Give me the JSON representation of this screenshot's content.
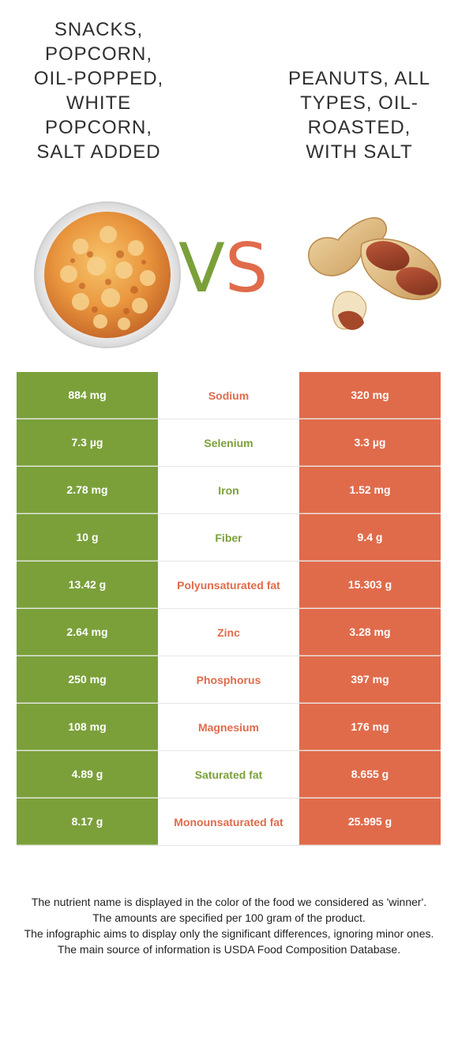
{
  "left_food": {
    "title": "Snacks, popcorn, oil-popped, white popcorn, salt added",
    "title_lines": [
      "SNACKS,",
      "POPCORN,",
      "OIL-POPPED,",
      "WHITE",
      "POPCORN,",
      "SALT ADDED"
    ],
    "image_icon": "popcorn-bowl",
    "color": "#7ba03a"
  },
  "right_food": {
    "title": "Peanuts, all types, oil-roasted, with salt",
    "title_lines": [
      "PEANUTS, ALL",
      "TYPES, OIL-",
      "ROASTED,",
      "WITH SALT"
    ],
    "image_icon": "peanuts",
    "color": "#e06b4b"
  },
  "vs": {
    "v": "V",
    "s": "S"
  },
  "nutrients": [
    {
      "name": "Sodium",
      "left": "884 mg",
      "right": "320 mg",
      "winner": "right"
    },
    {
      "name": "Selenium",
      "left": "7.3 µg",
      "right": "3.3 µg",
      "winner": "left"
    },
    {
      "name": "Iron",
      "left": "2.78 mg",
      "right": "1.52 mg",
      "winner": "left"
    },
    {
      "name": "Fiber",
      "left": "10 g",
      "right": "9.4 g",
      "winner": "left"
    },
    {
      "name": "Polyunsaturated fat",
      "left": "13.42 g",
      "right": "15.303 g",
      "winner": "right"
    },
    {
      "name": "Zinc",
      "left": "2.64 mg",
      "right": "3.28 mg",
      "winner": "right"
    },
    {
      "name": "Phosphorus",
      "left": "250 mg",
      "right": "397 mg",
      "winner": "right"
    },
    {
      "name": "Magnesium",
      "left": "108 mg",
      "right": "176 mg",
      "winner": "right"
    },
    {
      "name": "Saturated fat",
      "left": "4.89 g",
      "right": "8.655 g",
      "winner": "left"
    },
    {
      "name": "Monounsaturated fat",
      "left": "8.17 g",
      "right": "25.995 g",
      "winner": "right"
    }
  ],
  "footnote": [
    "The nutrient name is displayed in the color of the food we considered as 'winner'.",
    "The amounts are specified per 100 gram of the product.",
    "The infographic aims to display only the significant differences, ignoring minor ones.",
    "The main source of information is USDA Food Composition Database."
  ]
}
